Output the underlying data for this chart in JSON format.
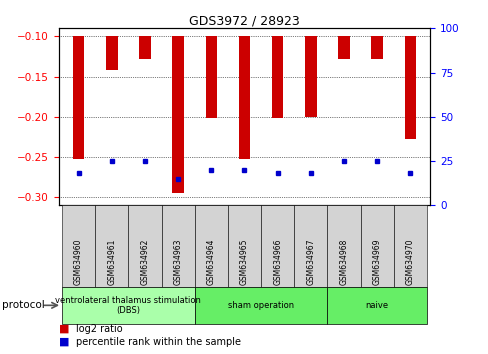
{
  "title": "GDS3972 / 28923",
  "samples": [
    "GSM634960",
    "GSM634961",
    "GSM634962",
    "GSM634963",
    "GSM634964",
    "GSM634965",
    "GSM634966",
    "GSM634967",
    "GSM634968",
    "GSM634969",
    "GSM634970"
  ],
  "log2_ratio": [
    -0.252,
    -0.142,
    -0.128,
    -0.295,
    -0.202,
    -0.252,
    -0.202,
    -0.2,
    -0.128,
    -0.128,
    -0.228
  ],
  "percentile_rank": [
    18,
    25,
    25,
    15,
    20,
    20,
    18,
    18,
    25,
    25,
    18
  ],
  "ylim_left": [
    -0.31,
    -0.09
  ],
  "ylim_right": [
    0,
    100
  ],
  "yticks_left": [
    -0.3,
    -0.25,
    -0.2,
    -0.15,
    -0.1
  ],
  "yticks_right": [
    0,
    25,
    50,
    75,
    100
  ],
  "bar_color": "#cc0000",
  "dot_color": "#0000cc",
  "groups": [
    {
      "label": "ventrolateral thalamus stimulation\n(DBS)",
      "start": 0,
      "end": 3,
      "color": "#aaffaa"
    },
    {
      "label": "sham operation",
      "start": 4,
      "end": 7,
      "color": "#66ee66"
    },
    {
      "label": "naive",
      "start": 8,
      "end": 10,
      "color": "#66ee66"
    }
  ],
  "protocol_label": "protocol",
  "legend_red": "log2 ratio",
  "legend_blue": "percentile rank within the sample",
  "bar_color_legend": "#cc0000",
  "dot_color_legend": "#0000cc",
  "bar_width": 0.35
}
